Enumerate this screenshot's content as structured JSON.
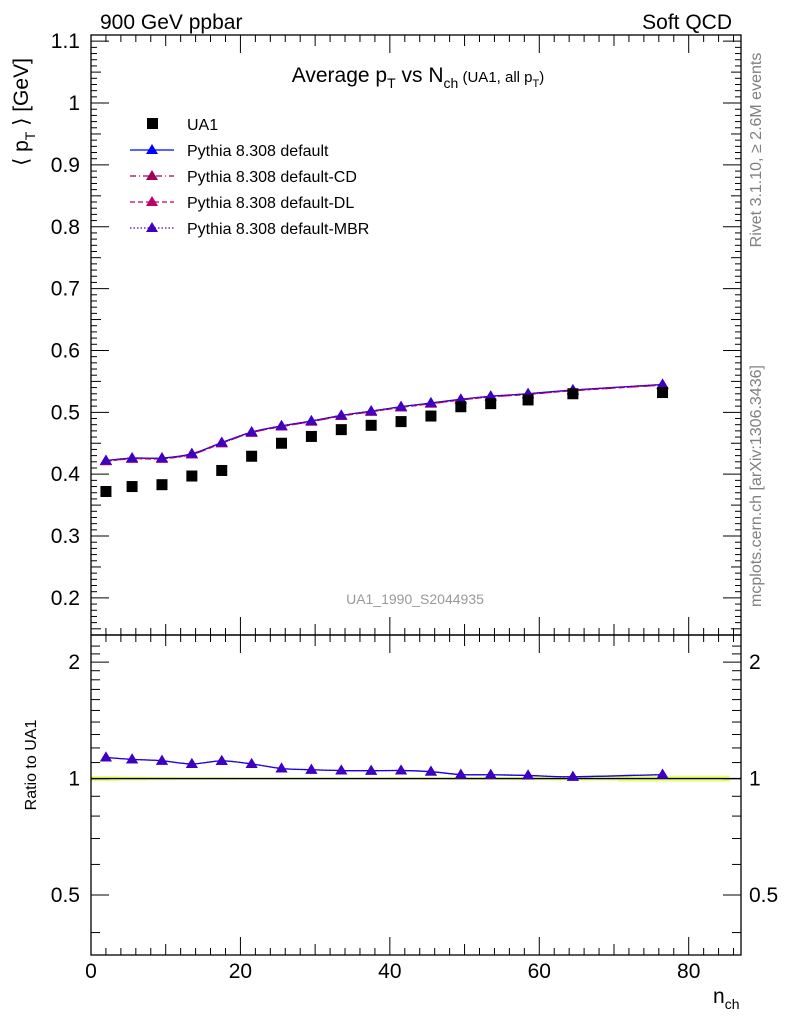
{
  "header": {
    "left": "900 GeV ppbar",
    "right": "Soft QCD"
  },
  "side_labels": {
    "top": "Rivet 3.1.10, ≥ 2.6M events",
    "bottom": "mcplots.cern.ch [arXiv:1306.3436]"
  },
  "watermark": "UA1_1990_S2044935",
  "colors": {
    "data": "#000000",
    "default": "#0000ff",
    "cd": "#a0005a",
    "dl": "#c0006a",
    "mbr": "#4000c0",
    "band": "#e8ff7a"
  },
  "chart_data": [
    {
      "type": "scatter",
      "title": {
        "main": "Average p",
        "sub1": "T",
        "mid": " vs N",
        "sub2": "ch",
        "tail": " (UA1, all p",
        "sub3": "T",
        "end": ")"
      },
      "ylabel": {
        "pre": "⟨ p",
        "sub": "T",
        "post": " ⟩ [GeV]"
      },
      "xlim": [
        0,
        87
      ],
      "ylim": [
        0.14,
        1.11
      ],
      "yticks": [
        "0.2",
        "0.3",
        "0.4",
        "0.5",
        "0.6",
        "0.7",
        "0.8",
        "0.9",
        "1",
        "1.1"
      ],
      "x": [
        2,
        5.5,
        9.5,
        13.5,
        17.5,
        21.5,
        25.5,
        29.5,
        33.5,
        37.5,
        41.5,
        45.5,
        49.5,
        53.5,
        58.5,
        64.5,
        76.5
      ],
      "series": [
        {
          "name": "UA1",
          "values": [
            0.372,
            0.38,
            0.383,
            0.397,
            0.406,
            0.429,
            0.45,
            0.461,
            0.472,
            0.479,
            0.485,
            0.494,
            0.509,
            0.514,
            0.52,
            0.53,
            0.532
          ]
        },
        {
          "name": "Pythia 8.308 default",
          "values": [
            0.422,
            0.426,
            0.426,
            0.433,
            0.451,
            0.468,
            0.478,
            0.486,
            0.495,
            0.502,
            0.509,
            0.515,
            0.521,
            0.526,
            0.53,
            0.536,
            0.545
          ]
        },
        {
          "name": "Pythia 8.308 default-CD",
          "values": [
            0.421,
            0.425,
            0.425,
            0.432,
            0.45,
            0.467,
            0.477,
            0.485,
            0.494,
            0.501,
            0.508,
            0.514,
            0.52,
            0.525,
            0.529,
            0.535,
            0.544
          ]
        },
        {
          "name": "Pythia 8.308 default-DL",
          "values": [
            0.421,
            0.425,
            0.425,
            0.432,
            0.45,
            0.467,
            0.477,
            0.485,
            0.494,
            0.501,
            0.508,
            0.514,
            0.52,
            0.525,
            0.529,
            0.535,
            0.544
          ]
        },
        {
          "name": "Pythia 8.308 default-MBR",
          "values": [
            0.422,
            0.426,
            0.426,
            0.433,
            0.451,
            0.468,
            0.478,
            0.486,
            0.495,
            0.502,
            0.509,
            0.515,
            0.521,
            0.526,
            0.53,
            0.536,
            0.545
          ]
        }
      ],
      "legend": "top-left"
    },
    {
      "type": "line",
      "ylabel": "Ratio to UA1",
      "xlabel": {
        "main": "n",
        "sub": "ch"
      },
      "xlim": [
        0,
        87
      ],
      "xticks": [
        "0",
        "20",
        "40",
        "60",
        "80"
      ],
      "ylim": [
        0.35,
        2.35
      ],
      "yticks": [
        "0.5",
        "1",
        "2"
      ],
      "x": [
        2,
        5.5,
        9.5,
        13.5,
        17.5,
        21.5,
        25.5,
        29.5,
        33.5,
        37.5,
        41.5,
        45.5,
        49.5,
        53.5,
        58.5,
        64.5,
        76.5
      ],
      "band": [
        0.015,
        0.012,
        0.01,
        0.008,
        0.007,
        0.006,
        0.006,
        0.006,
        0.006,
        0.006,
        0.007,
        0.007,
        0.008,
        0.009,
        0.01,
        0.012,
        0.018
      ],
      "series": [
        {
          "name": "Pythia 8.308 default",
          "values": [
            1.134,
            1.121,
            1.112,
            1.091,
            1.111,
            1.091,
            1.062,
            1.054,
            1.049,
            1.048,
            1.049,
            1.042,
            1.024,
            1.023,
            1.019,
            1.011,
            1.024
          ]
        },
        {
          "name": "Pythia 8.308 default-MBR",
          "values": [
            1.134,
            1.121,
            1.112,
            1.091,
            1.111,
            1.091,
            1.062,
            1.054,
            1.049,
            1.048,
            1.049,
            1.042,
            1.024,
            1.023,
            1.019,
            1.011,
            1.024
          ]
        }
      ]
    }
  ]
}
